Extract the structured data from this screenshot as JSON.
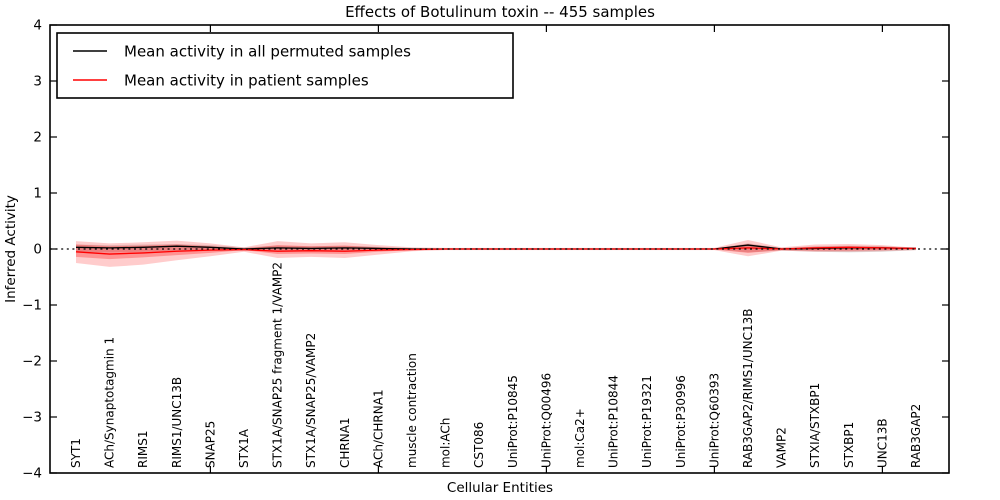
{
  "chart_data": {
    "type": "line",
    "title": "Effects of Botulinum toxin -- 455 samples",
    "xlabel": "Cellular Entities",
    "ylabel": "Inferred Activity",
    "ylim": [
      -4,
      4
    ],
    "ytick_values": [
      4,
      3,
      2,
      1,
      0,
      -1,
      -2,
      -3,
      -4
    ],
    "ytick_labels": [
      "4",
      "3",
      "2",
      "1",
      "0",
      "−1",
      "−2",
      "−3",
      "−4"
    ],
    "grid": false,
    "zero_line_style": "dotted",
    "legend_position": "upper left",
    "xtick_mark_indices": [
      4,
      9,
      14,
      19,
      24
    ],
    "categories": [
      "SYT1",
      "ACh/Synaptotagmin 1",
      "RIMS1",
      "RIMS1/UNC13B",
      "SNAP25",
      "STX1A",
      "STX1A/SNAP25 fragment 1/VAMP2",
      "STX1A/SNAP25/VAMP2",
      "CHRNA1",
      "ACh/CHRNA1",
      "muscle contraction",
      "mol:ACh",
      "CST086",
      "UniProt:P10845",
      "UniProt:Q00496",
      "mol:Ca2+",
      "UniProt:P10844",
      "UniProt:P19321",
      "UniProt:P30996",
      "UniProt:Q60393",
      "RAB3GAP2/RIMS1/UNC13B",
      "VAMP2",
      "STXIA/STXBP1",
      "STXBP1",
      "UNC13B",
      "RAB3GAP2"
    ],
    "series": [
      {
        "name": "Mean activity in all permuted samples",
        "color": "#000000",
        "band_color": "rgba(0,0,0,0.13)",
        "values": [
          0.03,
          0.02,
          0.03,
          0.05,
          0.03,
          0.0,
          0.02,
          0.01,
          0.02,
          0.01,
          0.0,
          0.0,
          0.0,
          0.0,
          0.0,
          0.0,
          0.0,
          0.0,
          0.0,
          0.0,
          0.07,
          0.0,
          0.01,
          0.02,
          0.02,
          0.01
        ],
        "band_hi": [
          0.08,
          0.07,
          0.08,
          0.09,
          0.07,
          0.03,
          0.06,
          0.05,
          0.06,
          0.04,
          0.02,
          0.01,
          0.01,
          0.01,
          0.01,
          0.01,
          0.01,
          0.01,
          0.01,
          0.01,
          0.1,
          0.02,
          0.05,
          0.06,
          0.05,
          0.02
        ],
        "band_lo": [
          -0.05,
          -0.06,
          -0.05,
          -0.03,
          -0.03,
          -0.03,
          -0.04,
          -0.04,
          -0.04,
          -0.03,
          -0.02,
          -0.01,
          -0.01,
          -0.01,
          -0.01,
          -0.01,
          -0.01,
          -0.01,
          -0.01,
          -0.01,
          -0.06,
          -0.03,
          -0.05,
          -0.06,
          -0.05,
          -0.02
        ]
      },
      {
        "name": "Mean activity in patient samples",
        "color": "#ff0000",
        "outer_band_color": "rgba(255,0,0,0.20)",
        "inner_band_color": "rgba(255,0,0,0.28)",
        "values": [
          -0.05,
          -0.09,
          -0.07,
          -0.04,
          -0.02,
          -0.01,
          -0.04,
          -0.03,
          -0.04,
          -0.02,
          -0.01,
          0.0,
          0.0,
          0.0,
          0.0,
          0.0,
          0.0,
          0.0,
          0.0,
          0.0,
          0.02,
          0.0,
          0.02,
          0.03,
          0.02,
          0.01
        ],
        "outer_hi": [
          0.14,
          0.1,
          0.12,
          0.15,
          0.1,
          0.03,
          0.14,
          0.1,
          0.12,
          0.07,
          0.03,
          0.02,
          0.02,
          0.02,
          0.02,
          0.02,
          0.02,
          0.02,
          0.02,
          0.02,
          0.16,
          0.03,
          0.08,
          0.09,
          0.07,
          0.02
        ],
        "outer_lo": [
          -0.25,
          -0.32,
          -0.28,
          -0.2,
          -0.13,
          -0.05,
          -0.16,
          -0.14,
          -0.16,
          -0.1,
          -0.04,
          -0.02,
          -0.02,
          -0.02,
          -0.02,
          -0.02,
          -0.02,
          -0.02,
          -0.02,
          -0.02,
          -0.13,
          -0.03,
          -0.05,
          -0.05,
          -0.04,
          -0.02
        ],
        "inner_hi": [
          0.08,
          0.05,
          0.06,
          0.08,
          0.05,
          0.01,
          0.07,
          0.05,
          0.06,
          0.03,
          0.01,
          0.01,
          0.01,
          0.01,
          0.01,
          0.01,
          0.01,
          0.01,
          0.01,
          0.01,
          0.09,
          0.01,
          0.04,
          0.05,
          0.04,
          0.01
        ],
        "inner_lo": [
          -0.14,
          -0.18,
          -0.15,
          -0.11,
          -0.07,
          -0.02,
          -0.09,
          -0.08,
          -0.09,
          -0.05,
          -0.02,
          -0.01,
          -0.01,
          -0.01,
          -0.01,
          -0.01,
          -0.01,
          -0.01,
          -0.01,
          -0.01,
          -0.07,
          -0.02,
          -0.03,
          -0.03,
          -0.02,
          -0.01
        ]
      }
    ]
  }
}
